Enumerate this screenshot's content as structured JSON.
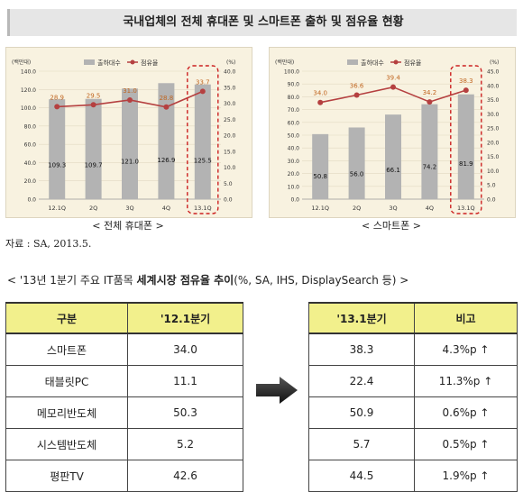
{
  "title": "국내업체의 전체 휴대폰 및 스마트폰 출하 및 점유율 현황",
  "chart_data": [
    {
      "type": "bar",
      "unit_left": "(백만대)",
      "unit_right": "(%)",
      "legend": [
        "출하대수",
        "점유율"
      ],
      "categories": [
        "12.1Q",
        "2Q",
        "3Q",
        "4Q",
        "13.1Q"
      ],
      "left_ticks": [
        "0.0",
        "20.0",
        "40.0",
        "60.0",
        "80.0",
        "100.0",
        "120.0",
        "140.0"
      ],
      "right_ticks": [
        "0.0",
        "5.0",
        "10.0",
        "15.0",
        "20.0",
        "25.0",
        "30.0",
        "35.0",
        "40.0"
      ],
      "ylim": [
        0,
        140
      ],
      "y2lim": [
        0,
        40
      ],
      "series": [
        {
          "name": "출하대수",
          "values": [
            109.3,
            109.7,
            121.0,
            126.9,
            125.5
          ]
        },
        {
          "name": "점유율",
          "values": [
            28.9,
            29.5,
            31.0,
            28.8,
            33.7
          ]
        }
      ],
      "bar_labels": [
        "109.3",
        "109.7",
        "121.0",
        "126.9",
        "125.5"
      ],
      "line_labels": [
        "28.9",
        "29.5",
        "31.0",
        "28.8",
        "33.7"
      ],
      "caption": "< 전체 휴대폰 >"
    },
    {
      "type": "bar",
      "unit_left": "(백만대)",
      "unit_right": "(%)",
      "legend": [
        "출하대수",
        "점유율"
      ],
      "categories": [
        "12.1Q",
        "2Q",
        "3Q",
        "4Q",
        "13.1Q"
      ],
      "left_ticks": [
        "0.0",
        "10.0",
        "20.0",
        "30.0",
        "40.0",
        "50.0",
        "60.0",
        "70.0",
        "80.0",
        "90.0",
        "100.0"
      ],
      "right_ticks": [
        "0.0",
        "5.0",
        "10.0",
        "15.0",
        "20.0",
        "25.0",
        "30.0",
        "35.0",
        "40.0",
        "45.0"
      ],
      "ylim": [
        0,
        100
      ],
      "y2lim": [
        0,
        45
      ],
      "series": [
        {
          "name": "출하대수",
          "values": [
            50.8,
            56.0,
            66.1,
            74.2,
            81.9
          ]
        },
        {
          "name": "점유율",
          "values": [
            34.0,
            36.6,
            39.4,
            34.2,
            38.3
          ]
        }
      ],
      "bar_labels": [
        "50.8",
        "56.0",
        "66.1",
        "74.2",
        "81.9"
      ],
      "line_labels": [
        "34.0",
        "36.6",
        "39.4",
        "34.2",
        "38.3"
      ],
      "caption": "< 스마트폰 >"
    }
  ],
  "source": "자료 : SA, 2013.5.",
  "subtitle_pre": "< '13년 1분기 주요 IT품목 ",
  "subtitle_bold": "세계시장 점유율 추이",
  "subtitle_post": "(%, SA, IHS, DisplaySearch 등) >",
  "table_left": {
    "headers": [
      "구분",
      "'12.1분기"
    ],
    "rows": [
      [
        "스마트폰",
        "34.0"
      ],
      [
        "태블릿PC",
        "11.1"
      ],
      [
        "메모리반도체",
        "50.3"
      ],
      [
        "시스템반도체",
        "5.2"
      ],
      [
        "평판TV",
        "42.6"
      ]
    ]
  },
  "table_right": {
    "headers": [
      "'13.1분기",
      "비고"
    ],
    "rows": [
      [
        "38.3",
        "4.3%p ↑"
      ],
      [
        "22.4",
        "11.3%p ↑"
      ],
      [
        "50.9",
        "0.6%p ↑"
      ],
      [
        "5.7",
        "0.5%p ↑"
      ],
      [
        "44.5",
        "1.9%p ↑"
      ]
    ]
  },
  "colors": {
    "bar": "#b3b3b3",
    "line": "#b54040",
    "label": "#c0651f",
    "highlight": "#cc2020",
    "header": "#f2f08c"
  }
}
